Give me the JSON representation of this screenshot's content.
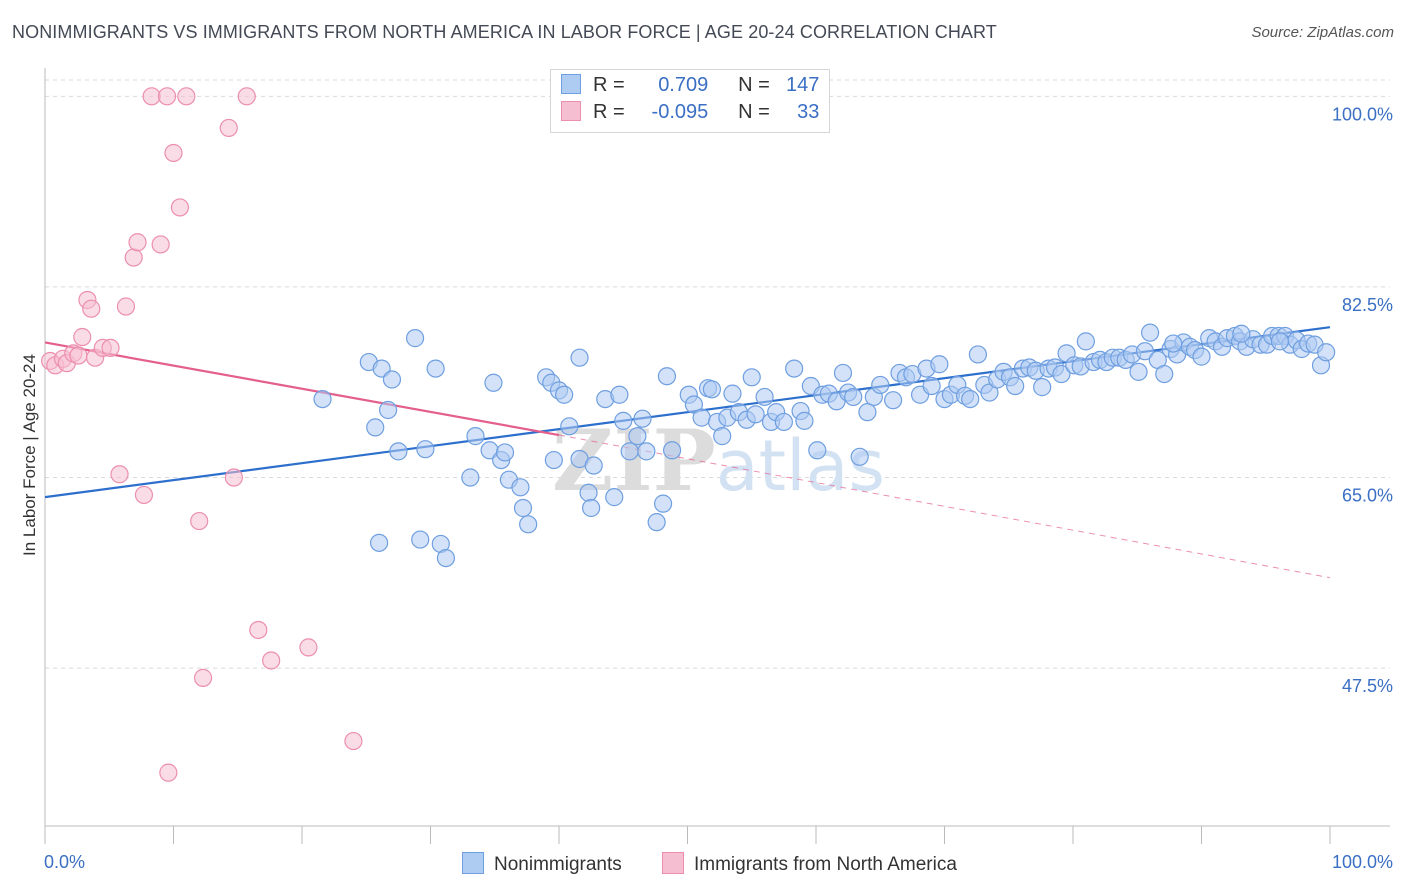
{
  "title": "NONIMMIGRANTS VS IMMIGRANTS FROM NORTH AMERICA IN LABOR FORCE | AGE 20-24 CORRELATION CHART",
  "source": "Source: ZipAtlas.com",
  "watermark": "ZIPatlas",
  "chart_data": {
    "type": "scatter",
    "xlabel": "",
    "ylabel": "In Labor Force | Age 20-24",
    "xlim": [
      0,
      100
    ],
    "ylim": [
      33,
      101.5
    ],
    "x_tick_labels": [
      "0.0%",
      "100.0%"
    ],
    "y_ticks": [
      47.5,
      65.0,
      82.5,
      100.0
    ],
    "y_tick_labels": [
      "47.5%",
      "65.0%",
      "82.5%",
      "100.0%"
    ],
    "grid": "horizontal dashed",
    "legend": {
      "placement": "top-center",
      "rows": [
        {
          "r_label": "R =",
          "r_value": "0.709",
          "n_label": "N =",
          "n_value": "147"
        },
        {
          "r_label": "R =",
          "r_value": "-0.095",
          "n_label": "N =",
          "n_value": "33"
        }
      ]
    },
    "series": [
      {
        "name": "Nonimmigrants",
        "color": "#6f9fe0",
        "fill": "#aecbf2",
        "trend": {
          "x": [
            0,
            100
          ],
          "y": [
            63.2,
            78.8
          ],
          "color": "#2d6fcc"
        },
        "points": [
          [
            21.6,
            72.2
          ],
          [
            25.2,
            75.6
          ],
          [
            25.7,
            69.6
          ],
          [
            26.0,
            59.0
          ],
          [
            26.2,
            75.0
          ],
          [
            26.7,
            71.2
          ],
          [
            27.0,
            74.0
          ],
          [
            27.5,
            67.4
          ],
          [
            28.8,
            77.8
          ],
          [
            29.2,
            59.3
          ],
          [
            29.6,
            67.6
          ],
          [
            30.4,
            75.0
          ],
          [
            30.8,
            58.9
          ],
          [
            31.2,
            57.6
          ],
          [
            33.1,
            65.0
          ],
          [
            33.5,
            68.8
          ],
          [
            34.6,
            67.5
          ],
          [
            34.9,
            73.7
          ],
          [
            35.5,
            66.6
          ],
          [
            35.8,
            67.3
          ],
          [
            36.1,
            64.8
          ],
          [
            37.0,
            64.1
          ],
          [
            37.2,
            62.2
          ],
          [
            37.6,
            60.7
          ],
          [
            39.0,
            74.2
          ],
          [
            39.4,
            73.7
          ],
          [
            39.6,
            66.6
          ],
          [
            40.0,
            73.0
          ],
          [
            40.4,
            72.6
          ],
          [
            40.8,
            69.7
          ],
          [
            41.6,
            66.7
          ],
          [
            41.6,
            76.0
          ],
          [
            42.3,
            63.6
          ],
          [
            42.5,
            62.2
          ],
          [
            42.7,
            66.1
          ],
          [
            43.6,
            72.2
          ],
          [
            44.3,
            63.2
          ],
          [
            44.7,
            72.6
          ],
          [
            45.0,
            70.2
          ],
          [
            45.5,
            67.4
          ],
          [
            46.1,
            68.8
          ],
          [
            46.5,
            70.4
          ],
          [
            46.8,
            67.4
          ],
          [
            47.6,
            60.9
          ],
          [
            48.1,
            62.6
          ],
          [
            48.4,
            74.3
          ],
          [
            48.8,
            67.5
          ],
          [
            50.1,
            72.6
          ],
          [
            50.5,
            71.7
          ],
          [
            51.1,
            70.5
          ],
          [
            51.6,
            73.2
          ],
          [
            51.9,
            73.1
          ],
          [
            52.3,
            70.1
          ],
          [
            52.7,
            68.8
          ],
          [
            53.1,
            70.5
          ],
          [
            53.5,
            72.7
          ],
          [
            54.0,
            71.0
          ],
          [
            54.6,
            70.3
          ],
          [
            55.0,
            74.2
          ],
          [
            55.3,
            70.8
          ],
          [
            56.0,
            72.4
          ],
          [
            56.5,
            70.1
          ],
          [
            56.9,
            71.0
          ],
          [
            57.5,
            70.1
          ],
          [
            58.3,
            75.0
          ],
          [
            58.8,
            71.1
          ],
          [
            59.1,
            70.2
          ],
          [
            59.6,
            73.4
          ],
          [
            60.1,
            67.5
          ],
          [
            60.5,
            72.6
          ],
          [
            61.0,
            72.7
          ],
          [
            61.6,
            72.0
          ],
          [
            62.1,
            74.6
          ],
          [
            62.5,
            72.8
          ],
          [
            62.9,
            72.4
          ],
          [
            63.4,
            66.9
          ],
          [
            64.0,
            71.0
          ],
          [
            64.5,
            72.4
          ],
          [
            65.0,
            73.5
          ],
          [
            66.0,
            72.1
          ],
          [
            66.5,
            74.6
          ],
          [
            67.0,
            74.2
          ],
          [
            67.5,
            74.5
          ],
          [
            68.1,
            72.6
          ],
          [
            68.6,
            75.0
          ],
          [
            69.0,
            73.4
          ],
          [
            69.6,
            75.4
          ],
          [
            70.0,
            72.2
          ],
          [
            70.5,
            72.6
          ],
          [
            71.0,
            73.5
          ],
          [
            71.6,
            72.5
          ],
          [
            72.0,
            72.2
          ],
          [
            72.6,
            76.3
          ],
          [
            73.1,
            73.5
          ],
          [
            73.5,
            72.8
          ],
          [
            74.1,
            74.0
          ],
          [
            74.6,
            74.7
          ],
          [
            75.1,
            74.2
          ],
          [
            75.5,
            73.4
          ],
          [
            76.1,
            75.0
          ],
          [
            76.6,
            75.1
          ],
          [
            77.1,
            74.8
          ],
          [
            77.6,
            73.3
          ],
          [
            78.1,
            75.0
          ],
          [
            78.6,
            75.1
          ],
          [
            79.1,
            74.5
          ],
          [
            79.5,
            76.4
          ],
          [
            80.1,
            75.3
          ],
          [
            80.6,
            75.2
          ],
          [
            81.0,
            77.5
          ],
          [
            81.6,
            75.6
          ],
          [
            82.1,
            75.8
          ],
          [
            82.6,
            75.6
          ],
          [
            83.1,
            76.0
          ],
          [
            83.6,
            76.0
          ],
          [
            84.1,
            75.8
          ],
          [
            84.6,
            76.3
          ],
          [
            85.1,
            74.7
          ],
          [
            85.6,
            76.6
          ],
          [
            86.0,
            78.3
          ],
          [
            86.6,
            75.8
          ],
          [
            87.1,
            74.5
          ],
          [
            87.6,
            76.8
          ],
          [
            88.1,
            76.3
          ],
          [
            88.6,
            77.4
          ],
          [
            89.1,
            77.0
          ],
          [
            89.5,
            76.7
          ],
          [
            90.0,
            76.1
          ],
          [
            90.6,
            77.8
          ],
          [
            91.1,
            77.5
          ],
          [
            91.6,
            77.0
          ],
          [
            92.0,
            77.8
          ],
          [
            92.6,
            78.0
          ],
          [
            93.0,
            77.5
          ],
          [
            93.5,
            77.0
          ],
          [
            94.0,
            77.7
          ],
          [
            94.6,
            77.2
          ],
          [
            95.1,
            77.2
          ],
          [
            95.5,
            78.0
          ],
          [
            96.0,
            78.0
          ],
          [
            96.5,
            78.0
          ],
          [
            96.9,
            77.2
          ],
          [
            97.4,
            77.6
          ],
          [
            97.8,
            76.8
          ],
          [
            98.3,
            77.3
          ],
          [
            98.8,
            77.2
          ],
          [
            99.3,
            75.3
          ],
          [
            99.7,
            76.5
          ],
          [
            96.1,
            77.5
          ],
          [
            93.1,
            78.2
          ],
          [
            87.8,
            77.3
          ]
        ]
      },
      {
        "name": "Immigrants from North America",
        "color": "#ec8fad",
        "fill": "#f6bfd1",
        "trend": {
          "x": [
            0,
            40
          ],
          "y": [
            77.4,
            68.9
          ],
          "color": "#e45f8e"
        },
        "trend_extension": {
          "x": [
            40,
            100
          ],
          "y": [
            68.9,
            55.8
          ]
        },
        "points": [
          [
            0.4,
            75.7
          ],
          [
            0.8,
            75.3
          ],
          [
            1.4,
            75.9
          ],
          [
            1.7,
            75.5
          ],
          [
            2.2,
            76.4
          ],
          [
            2.6,
            76.2
          ],
          [
            2.9,
            77.9
          ],
          [
            3.3,
            81.3
          ],
          [
            3.6,
            80.5
          ],
          [
            3.9,
            76.0
          ],
          [
            4.5,
            76.9
          ],
          [
            5.1,
            76.9
          ],
          [
            5.8,
            65.3
          ],
          [
            6.3,
            80.7
          ],
          [
            6.9,
            85.2
          ],
          [
            7.2,
            86.6
          ],
          [
            7.7,
            63.4
          ],
          [
            8.3,
            100.0
          ],
          [
            9.0,
            86.4
          ],
          [
            9.5,
            100.0
          ],
          [
            10.0,
            94.8
          ],
          [
            10.5,
            89.8
          ],
          [
            11.0,
            100.0
          ],
          [
            12.0,
            61.0
          ],
          [
            12.3,
            46.6
          ],
          [
            14.3,
            97.1
          ],
          [
            14.7,
            65.0
          ],
          [
            15.7,
            100.0
          ],
          [
            16.6,
            51.0
          ],
          [
            17.6,
            48.2
          ],
          [
            20.5,
            49.4
          ],
          [
            24.0,
            40.8
          ],
          [
            9.6,
            37.9
          ],
          [
            40.0,
            100.0
          ]
        ]
      }
    ]
  }
}
